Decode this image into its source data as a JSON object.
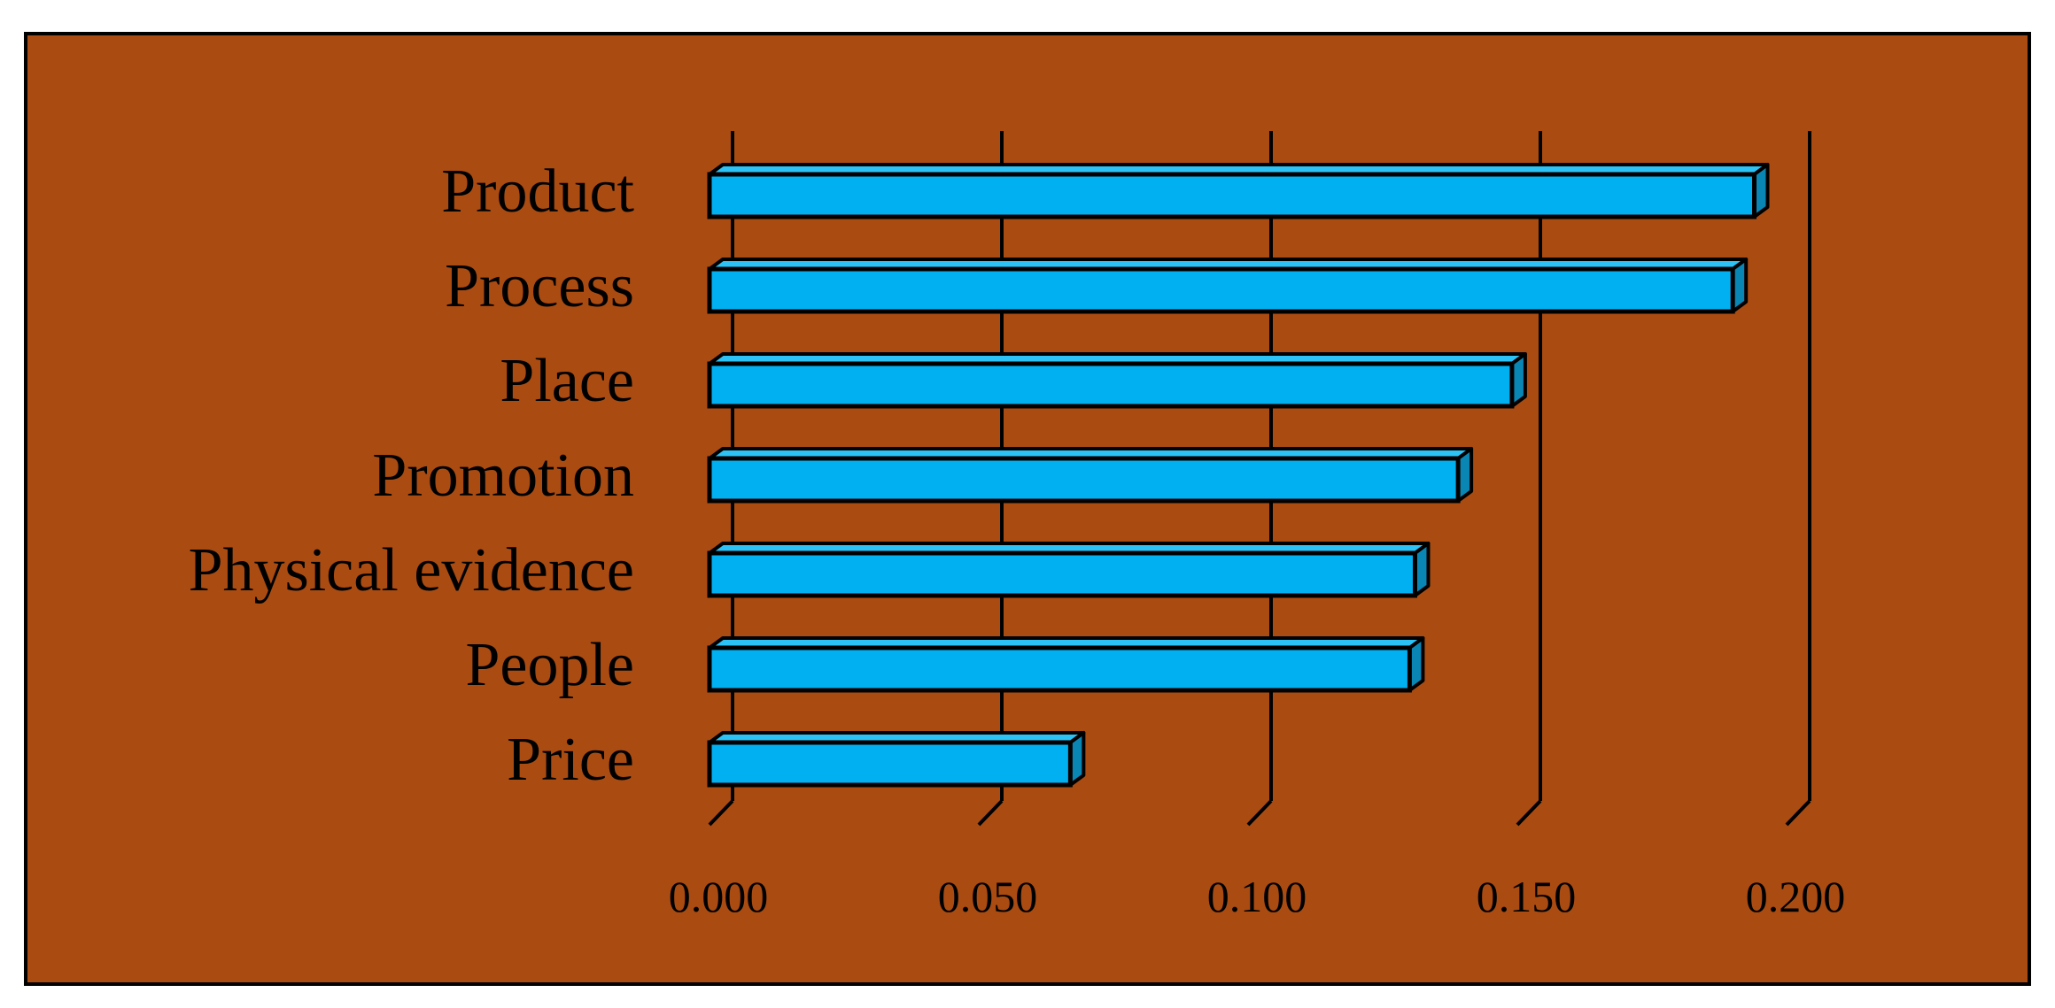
{
  "colors": {
    "plot_background": "#AA4B12",
    "bar_face": "#00B0F0",
    "bar_top": "#2CC2F5",
    "bar_side": "#0A86B5",
    "outline": "#000000",
    "page_background": "#FFFFFF"
  },
  "chart_data": {
    "type": "bar",
    "orientation": "horizontal",
    "style": "3d",
    "title": "",
    "xlabel": "",
    "ylabel": "",
    "categories": [
      "Product",
      "Process",
      "Place",
      "Promotion",
      "Physical evidence",
      "People",
      "Price"
    ],
    "values": [
      0.194,
      0.19,
      0.149,
      0.139,
      0.131,
      0.13,
      0.067
    ],
    "xlim": [
      0,
      0.2
    ],
    "xticks": [
      0.0,
      0.05,
      0.1,
      0.15,
      0.2
    ],
    "xtick_labels": [
      "0.000",
      "0.050",
      "0.100",
      "0.150",
      "0.200"
    ],
    "grid": "vertical",
    "legend": "none"
  }
}
